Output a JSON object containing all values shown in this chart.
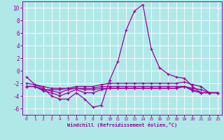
{
  "xlabel": "Windchill (Refroidissement éolien,°C)",
  "bg_color": "#b0e8e8",
  "line_color": "#990099",
  "grid_color": "#ffffff",
  "xlim": [
    -0.5,
    23.5
  ],
  "ylim": [
    -7,
    11
  ],
  "yticks": [
    -6,
    -4,
    -2,
    0,
    2,
    4,
    6,
    8,
    10
  ],
  "xticks": [
    0,
    1,
    2,
    3,
    4,
    5,
    6,
    7,
    8,
    9,
    10,
    11,
    12,
    13,
    14,
    15,
    16,
    17,
    18,
    19,
    20,
    21,
    22,
    23
  ],
  "main_y": [
    -1.0,
    -2.2,
    -2.8,
    -4.0,
    -4.5,
    -4.5,
    -3.5,
    -4.5,
    -5.8,
    -5.5,
    -1.5,
    1.5,
    6.5,
    9.5,
    10.5,
    3.5,
    0.5,
    -0.5,
    -1.0,
    -1.2,
    -2.5,
    -3.5,
    -3.5,
    -3.5
  ],
  "flat1": [
    -2.0,
    -2.2,
    -2.5,
    -2.8,
    -2.8,
    -2.8,
    -2.5,
    -2.5,
    -2.5,
    -2.2,
    -2.0,
    -2.0,
    -2.0,
    -2.0,
    -2.0,
    -2.0,
    -2.0,
    -2.0,
    -2.0,
    -1.8,
    -2.2,
    -2.5,
    -3.5,
    -3.5
  ],
  "flat2": [
    -2.5,
    -2.5,
    -3.0,
    -3.0,
    -3.0,
    -2.8,
    -2.8,
    -2.8,
    -2.8,
    -2.5,
    -2.5,
    -2.5,
    -2.5,
    -2.5,
    -2.5,
    -2.5,
    -2.5,
    -2.5,
    -2.5,
    -2.5,
    -2.8,
    -3.0,
    -3.5,
    -3.5
  ],
  "flat3": [
    -2.5,
    -2.5,
    -3.0,
    -3.2,
    -3.5,
    -3.0,
    -2.8,
    -3.0,
    -3.0,
    -2.8,
    -2.8,
    -2.8,
    -2.8,
    -2.8,
    -2.8,
    -2.8,
    -2.8,
    -2.8,
    -2.8,
    -2.5,
    -3.0,
    -3.5,
    -3.5,
    -3.5
  ],
  "flat4": [
    -2.5,
    -2.5,
    -3.2,
    -3.5,
    -4.0,
    -3.5,
    -3.0,
    -3.5,
    -3.5,
    -3.0,
    -2.8,
    -2.8,
    -2.8,
    -2.8,
    -2.8,
    -2.8,
    -2.8,
    -2.8,
    -2.8,
    -2.5,
    -3.2,
    -3.5,
    -3.5,
    -3.5
  ]
}
